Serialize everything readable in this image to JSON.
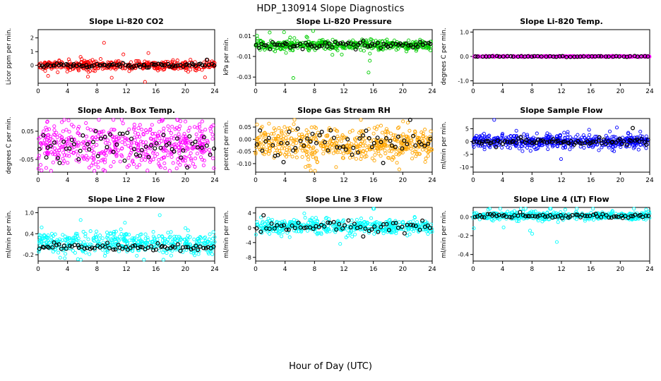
{
  "page": {
    "title": "HDP_130914  Slope Diagnostics",
    "xlabel": "Hour of Day (UTC)"
  },
  "chart_data": [
    {
      "type": "scatter",
      "title": "Slope Li-820 CO2",
      "ylabel": "Licor ppm per min.",
      "xlim": [
        0,
        24
      ],
      "ylim": [
        -1.3,
        2.6
      ],
      "xtick_vals": [
        0,
        4,
        8,
        12,
        16,
        20,
        24
      ],
      "xtick_labels": [
        "0",
        "4",
        "8",
        "12",
        "16",
        "20",
        "24"
      ],
      "ytick_vals": [
        0,
        1,
        2
      ],
      "ytick_labels": [
        "0",
        "1",
        "2"
      ],
      "legend": "none",
      "grid": false,
      "series": [
        {
          "name": "raw",
          "color": "#ff0000",
          "n": 430,
          "mean": 0.0,
          "sd": 0.18,
          "outlier_frac": 0.06,
          "outlier_sd": 0.8,
          "seed": 101,
          "marker_r": 2.1,
          "sw": 0.9,
          "x_mode": "uniform"
        },
        {
          "name": "hourly",
          "color": "#000000",
          "n": 80,
          "mean": 0.0,
          "sd": 0.07,
          "outlier_frac": 0.03,
          "outlier_sd": 0.35,
          "seed": 102,
          "marker_r": 2.4,
          "sw": 1.2,
          "x_mode": "regular"
        }
      ]
    },
    {
      "type": "scatter",
      "title": "Slope Li-820 Pressure",
      "ylabel": "kPa per min.",
      "xlim": [
        0,
        24
      ],
      "ylim": [
        -0.036,
        0.016
      ],
      "xtick_vals": [
        0,
        4,
        8,
        12,
        16,
        20,
        24
      ],
      "xtick_labels": [
        "0",
        "4",
        "8",
        "12",
        "16",
        "20",
        "24"
      ],
      "ytick_vals": [
        0.01,
        -0.01,
        -0.03
      ],
      "ytick_labels": [
        "0.01",
        "-0.01",
        "-0.03"
      ],
      "legend": "none",
      "grid": false,
      "series": [
        {
          "name": "raw",
          "color": "#00cd00",
          "n": 450,
          "mean": 0.001,
          "sd": 0.0025,
          "outlier_frac": 0.05,
          "outlier_sd": 0.012,
          "seed": 201,
          "marker_r": 2.1,
          "sw": 0.9,
          "x_mode": "uniform"
        },
        {
          "name": "hourly",
          "color": "#000000",
          "n": 70,
          "mean": 0.001,
          "sd": 0.0018,
          "outlier_frac": 0.02,
          "outlier_sd": 0.008,
          "seed": 202,
          "marker_r": 2.4,
          "sw": 1.2,
          "x_mode": "regular"
        }
      ]
    },
    {
      "type": "scatter",
      "title": "Slope Li-820 Temp.",
      "ylabel": "degrees C per min.",
      "xlim": [
        0,
        24
      ],
      "ylim": [
        -1.1,
        1.1
      ],
      "xtick_vals": [
        0,
        4,
        8,
        12,
        16,
        20,
        24
      ],
      "xtick_labels": [
        "0",
        "4",
        "8",
        "12",
        "16",
        "20",
        "24"
      ],
      "ytick_vals": [
        1.0,
        0.0,
        -1.0
      ],
      "ytick_labels": [
        "1.0",
        "0.0",
        "-1.0"
      ],
      "legend": "none",
      "grid": false,
      "series": [
        {
          "name": "raw",
          "color": "#ff00ff",
          "n": 450,
          "mean": 0.0,
          "sd": 0.012,
          "outlier_frac": 0.0,
          "outlier_sd": 0.02,
          "seed": 301,
          "marker_r": 2.1,
          "sw": 0.9,
          "x_mode": "uniform"
        },
        {
          "name": "hourly",
          "color": "#000000",
          "n": 50,
          "mean": 0.0,
          "sd": 0.008,
          "outlier_frac": 0.0,
          "outlier_sd": 0.01,
          "seed": 302,
          "marker_r": 2.4,
          "sw": 1.2,
          "x_mode": "regular"
        }
      ]
    },
    {
      "type": "scatter",
      "title": "Slope Amb. Box Temp.",
      "ylabel": "degrees C per min.",
      "xlim": [
        0,
        24
      ],
      "ylim": [
        -0.095,
        0.095
      ],
      "xtick_vals": [
        0,
        4,
        8,
        12,
        16,
        20,
        24
      ],
      "xtick_labels": [
        "0",
        "4",
        "8",
        "12",
        "16",
        "20",
        "24"
      ],
      "ytick_vals": [
        0.05,
        -0.05
      ],
      "ytick_labels": [
        "0.05",
        "-0.05"
      ],
      "legend": "none",
      "grid": false,
      "series": [
        {
          "name": "raw",
          "color": "#ff00ff",
          "n": 520,
          "mean": 0.0,
          "sd": 0.042,
          "outlier_frac": 0.03,
          "outlier_sd": 0.075,
          "seed": 401,
          "marker_r": 2.1,
          "sw": 0.9,
          "x_mode": "uniform"
        },
        {
          "name": "hourly",
          "color": "#000000",
          "n": 60,
          "mean": 0.0,
          "sd": 0.032,
          "outlier_frac": 0.03,
          "outlier_sd": 0.06,
          "seed": 402,
          "marker_r": 2.4,
          "sw": 1.2,
          "x_mode": "regular"
        }
      ]
    },
    {
      "type": "scatter",
      "title": "Slope Gas Stream RH",
      "ylabel": "percent per min.",
      "xlim": [
        0,
        24
      ],
      "ylim": [
        -0.135,
        0.085
      ],
      "xtick_vals": [
        0,
        4,
        8,
        12,
        16,
        20,
        24
      ],
      "xtick_labels": [
        "0",
        "4",
        "8",
        "12",
        "16",
        "20",
        "24"
      ],
      "ytick_vals": [
        0.05,
        0.0,
        -0.05,
        -0.1
      ],
      "ytick_labels": [
        "0.05",
        "0.00",
        "-0.05",
        "-0.10"
      ],
      "legend": "none",
      "grid": false,
      "series": [
        {
          "name": "raw",
          "color": "#ffa500",
          "n": 520,
          "mean": -0.02,
          "sd": 0.035,
          "outlier_frac": 0.03,
          "outlier_sd": 0.06,
          "seed": 501,
          "marker_r": 2.1,
          "sw": 0.9,
          "x_mode": "uniform"
        },
        {
          "name": "hourly",
          "color": "#000000",
          "n": 60,
          "mean": -0.015,
          "sd": 0.03,
          "outlier_frac": 0.03,
          "outlier_sd": 0.05,
          "seed": 502,
          "marker_r": 2.4,
          "sw": 1.2,
          "x_mode": "regular"
        }
      ]
    },
    {
      "type": "scatter",
      "title": "Slope Sample Flow",
      "ylabel": "ml/min per min.",
      "xlim": [
        0,
        24
      ],
      "ylim": [
        -12,
        9
      ],
      "xtick_vals": [
        0,
        4,
        8,
        12,
        16,
        20,
        24
      ],
      "xtick_labels": [
        "0",
        "4",
        "8",
        "12",
        "16",
        "20",
        "24"
      ],
      "ytick_vals": [
        5,
        0,
        -5,
        -10
      ],
      "ytick_labels": [
        "5",
        "0",
        "-5",
        "-10"
      ],
      "legend": "none",
      "grid": false,
      "series": [
        {
          "name": "raw",
          "color": "#0000ff",
          "n": 500,
          "mean": 0.0,
          "sd": 1.3,
          "outlier_frac": 0.05,
          "outlier_sd": 4.5,
          "seed": 601,
          "marker_r": 2.1,
          "sw": 0.9,
          "x_mode": "uniform"
        },
        {
          "name": "hourly",
          "color": "#000000",
          "n": 80,
          "mean": 0.0,
          "sd": 0.6,
          "outlier_frac": 0.04,
          "outlier_sd": 3.0,
          "seed": 602,
          "marker_r": 2.4,
          "sw": 1.2,
          "x_mode": "regular"
        }
      ]
    },
    {
      "type": "scatter",
      "title": "Slope Line 2 Flow",
      "ylabel": "ml/min per min.",
      "xlim": [
        0,
        24
      ],
      "ylim": [
        -0.38,
        1.15
      ],
      "xtick_vals": [
        0,
        4,
        8,
        12,
        16,
        20,
        24
      ],
      "xtick_labels": [
        "0",
        "4",
        "8",
        "12",
        "16",
        "20",
        "24"
      ],
      "ytick_vals": [
        1.0,
        0.4,
        -0.2
      ],
      "ytick_labels": [
        "1.0",
        "0.4",
        "-0.2"
      ],
      "legend": "none",
      "grid": false,
      "series": [
        {
          "name": "raw",
          "color": "#00ffff",
          "n": 480,
          "mean": 0.13,
          "sd": 0.16,
          "outlier_frac": 0.04,
          "outlier_sd": 0.35,
          "seed": 701,
          "marker_r": 2.1,
          "sw": 0.9,
          "x_mode": "uniform"
        },
        {
          "name": "hourly",
          "color": "#000000",
          "n": 70,
          "mean": 0.02,
          "sd": 0.05,
          "outlier_frac": 0.03,
          "outlier_sd": 0.15,
          "seed": 702,
          "marker_r": 2.4,
          "sw": 1.2,
          "x_mode": "regular"
        }
      ]
    },
    {
      "type": "scatter",
      "title": "Slope Line 3 Flow",
      "ylabel": "ml/min per min.",
      "xlim": [
        0,
        24
      ],
      "ylim": [
        -9,
        5.5
      ],
      "xtick_vals": [
        0,
        4,
        8,
        12,
        16,
        20,
        24
      ],
      "xtick_labels": [
        "0",
        "4",
        "8",
        "12",
        "16",
        "20",
        "24"
      ],
      "ytick_vals": [
        4,
        0,
        -4,
        -8
      ],
      "ytick_labels": [
        "4",
        "0",
        "-4",
        "-8"
      ],
      "legend": "none",
      "grid": false,
      "series": [
        {
          "name": "raw",
          "color": "#00ffff",
          "n": 480,
          "mean": 0.3,
          "sd": 1.0,
          "outlier_frac": 0.06,
          "outlier_sd": 3.2,
          "seed": 801,
          "marker_r": 2.1,
          "sw": 0.9,
          "x_mode": "uniform"
        },
        {
          "name": "hourly",
          "color": "#000000",
          "n": 60,
          "mean": 0.2,
          "sd": 0.7,
          "outlier_frac": 0.08,
          "outlier_sd": 2.5,
          "seed": 802,
          "marker_r": 2.4,
          "sw": 1.2,
          "x_mode": "regular"
        }
      ]
    },
    {
      "type": "scatter",
      "title": "Slope Line 4 (LT) Flow",
      "ylabel": "ml/min per min.",
      "xlim": [
        0,
        24
      ],
      "ylim": [
        -0.47,
        0.1
      ],
      "xtick_vals": [
        0,
        4,
        8,
        12,
        16,
        20,
        24
      ],
      "xtick_labels": [
        "0",
        "4",
        "8",
        "12",
        "16",
        "20",
        "24"
      ],
      "ytick_vals": [
        0.0,
        -0.2,
        -0.4
      ],
      "ytick_labels": [
        "0.0",
        "-0.2",
        "-0.4"
      ],
      "legend": "none",
      "grid": false,
      "series": [
        {
          "name": "raw",
          "color": "#00ffff",
          "n": 470,
          "mean": 0.01,
          "sd": 0.02,
          "outlier_frac": 0.05,
          "outlier_sd": 0.13,
          "seed": 901,
          "marker_r": 2.1,
          "sw": 0.9,
          "x_mode": "uniform"
        },
        {
          "name": "hourly",
          "color": "#000000",
          "n": 70,
          "mean": 0.01,
          "sd": 0.012,
          "outlier_frac": 0.03,
          "outlier_sd": 0.06,
          "seed": 902,
          "marker_r": 2.4,
          "sw": 1.2,
          "x_mode": "regular"
        }
      ]
    }
  ]
}
